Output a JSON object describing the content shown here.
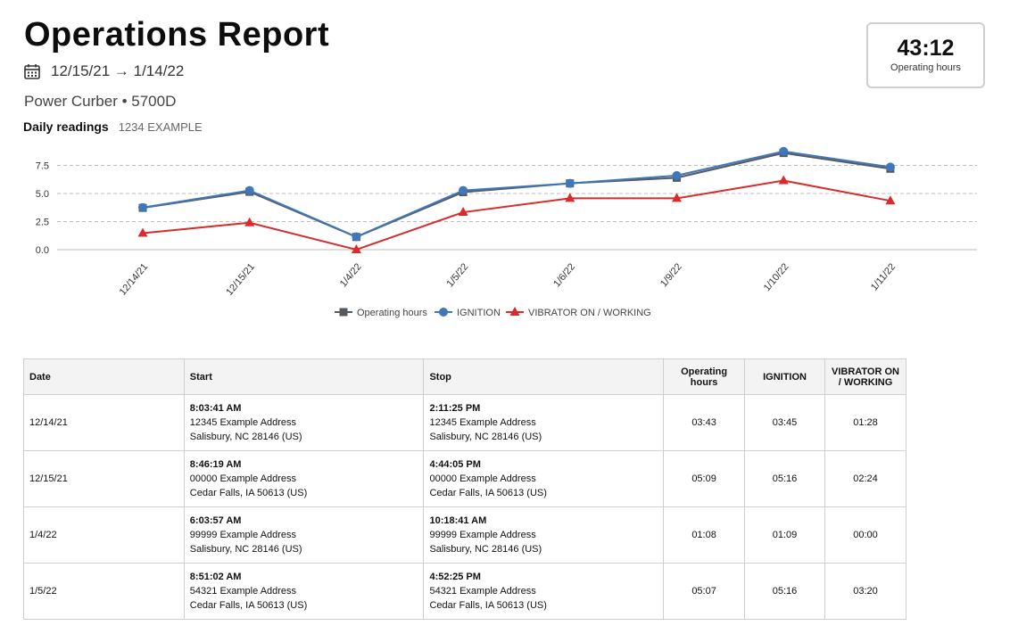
{
  "header": {
    "title": "Operations Report",
    "date_range": "12/15/21 → 1/14/22",
    "machine": "Power Curber • 5700D",
    "daily_label": "Daily readings",
    "daily_id": "1234 EXAMPLE"
  },
  "summary": {
    "value": "43:12",
    "label": "Operating hours"
  },
  "chart_data": {
    "type": "line",
    "categories": [
      "12/14/21",
      "12/15/21",
      "1/4/22",
      "1/5/22",
      "1/6/22",
      "1/9/22",
      "1/10/22",
      "1/11/22"
    ],
    "series": [
      {
        "name": "Operating hours",
        "color": "#555a5f",
        "marker": "square",
        "values": [
          3.72,
          5.15,
          1.13,
          5.12,
          5.9,
          6.4,
          8.6,
          7.2
        ]
      },
      {
        "name": "IGNITION",
        "color": "#3f77b8",
        "marker": "circle",
        "values": [
          3.75,
          5.27,
          1.15,
          5.27,
          5.9,
          6.6,
          8.75,
          7.35
        ]
      },
      {
        "name": "VIBRATOR ON / WORKING",
        "color": "#d92b2b",
        "marker": "triangle",
        "values": [
          1.47,
          2.4,
          0.0,
          3.33,
          4.57,
          4.57,
          6.15,
          4.35
        ]
      }
    ],
    "yticks": [
      "0.0",
      "2.5",
      "5.0",
      "7.5"
    ],
    "ytick_values": [
      0,
      2.5,
      5,
      7.5
    ],
    "ylim": [
      0,
      9
    ],
    "grid": true,
    "legend": "bottom-center"
  },
  "table": {
    "headers": {
      "date": "Date",
      "start": "Start",
      "stop": "Stop",
      "operating": "Operating hours",
      "ignition": "IGNITION",
      "vibrator": "VIBRATOR ON / WORKING"
    },
    "rows": [
      {
        "date": "12/14/21",
        "start_time": "8:03:41 AM",
        "start_addr": "12345 Example Address",
        "start_city": "Salisbury, NC 28146 (US)",
        "stop_time": "2:11:25 PM",
        "stop_addr": "12345 Example Address",
        "stop_city": "Salisbury, NC 28146 (US)",
        "operating": "03:43",
        "ignition": "03:45",
        "vibrator": "01:28"
      },
      {
        "date": "12/15/21",
        "start_time": "8:46:19 AM",
        "start_addr": "00000 Example Address",
        "start_city": "Cedar Falls, IA 50613 (US)",
        "stop_time": "4:44:05 PM",
        "stop_addr": "00000 Example Address",
        "stop_city": "Cedar Falls, IA 50613 (US)",
        "operating": "05:09",
        "ignition": "05:16",
        "vibrator": "02:24"
      },
      {
        "date": "1/4/22",
        "start_time": "6:03:57 AM",
        "start_addr": "99999 Example Address",
        "start_city": "Salisbury, NC 28146 (US)",
        "stop_time": "10:18:41 AM",
        "stop_addr": "99999 Example Address",
        "stop_city": "Salisbury, NC 28146 (US)",
        "operating": "01:08",
        "ignition": "01:09",
        "vibrator": "00:00"
      },
      {
        "date": "1/5/22",
        "start_time": "8:51:02 AM",
        "start_addr": "54321 Example Address",
        "start_city": "Cedar Falls, IA 50613 (US)",
        "stop_time": "4:52:25 PM",
        "stop_addr": "54321 Example Address",
        "stop_city": "Cedar Falls, IA 50613 (US)",
        "operating": "05:07",
        "ignition": "05:16",
        "vibrator": "03:20"
      }
    ]
  }
}
